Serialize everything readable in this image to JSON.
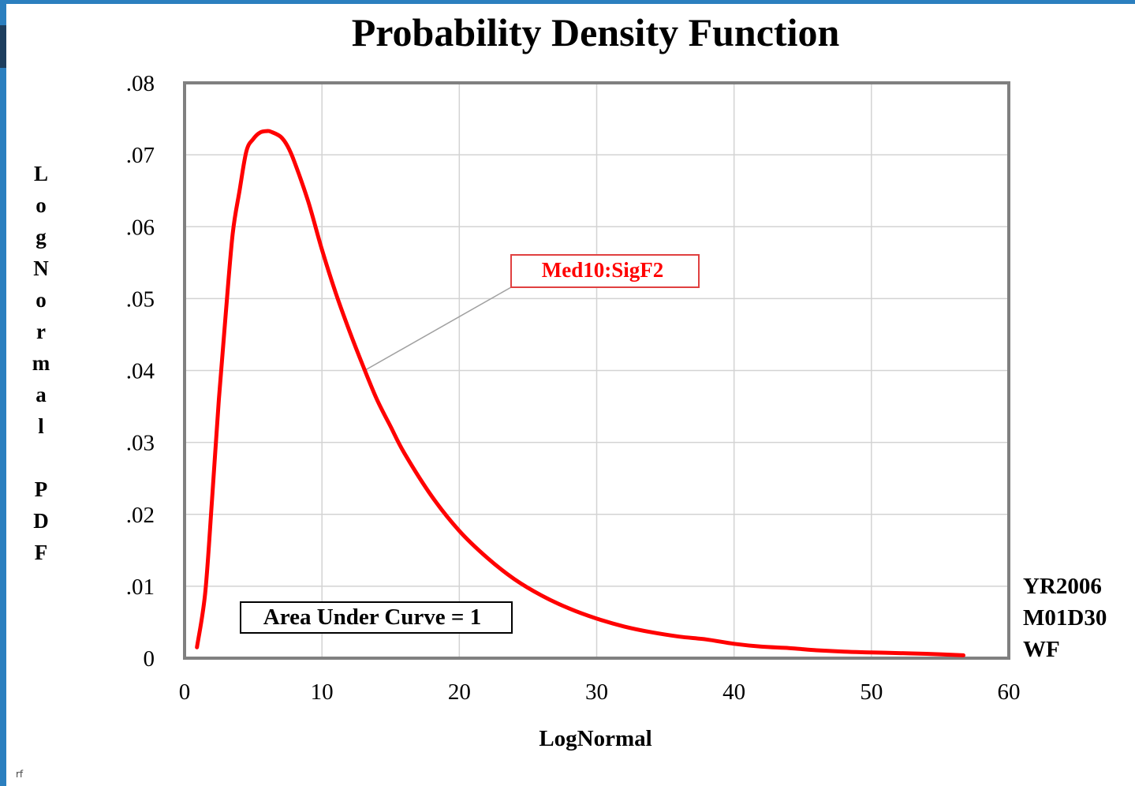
{
  "chart_data": {
    "type": "line",
    "title": "Probability Density Function",
    "xlabel": "LogNormal",
    "ylabel": "LogNormal PDF",
    "xlim": [
      0,
      60
    ],
    "ylim": [
      0,
      0.08
    ],
    "x_ticks": [
      0,
      10,
      20,
      30,
      40,
      50,
      60
    ],
    "x_tick_labels": [
      "0",
      "10",
      "20",
      "30",
      "40",
      "50",
      "60"
    ],
    "y_ticks": [
      0,
      0.01,
      0.02,
      0.03,
      0.04,
      0.05,
      0.06,
      0.07,
      0.08
    ],
    "y_tick_labels": [
      "0",
      ".01",
      ".02",
      ".03",
      ".04",
      ".05",
      ".06",
      ".07",
      ".08"
    ],
    "grid": true,
    "series": [
      {
        "name": "Med10:SigF2",
        "color": "#ff0000",
        "x": [
          0.9,
          1.5,
          2,
          2.5,
          3,
          3.5,
          4,
          4.5,
          5,
          5.5,
          6,
          6.3,
          7,
          7.5,
          8,
          9,
          10,
          11,
          12,
          13,
          14,
          15,
          16,
          18,
          20,
          22,
          24,
          26,
          28,
          30,
          32,
          34,
          36,
          38,
          40,
          42,
          44,
          46,
          48,
          50,
          52,
          54,
          56.7
        ],
        "y": [
          0.0015,
          0.009,
          0.022,
          0.036,
          0.048,
          0.059,
          0.065,
          0.0705,
          0.0722,
          0.0731,
          0.0733,
          0.0732,
          0.0725,
          0.0712,
          0.069,
          0.0635,
          0.0568,
          0.0508,
          0.0455,
          0.0406,
          0.036,
          0.0322,
          0.0285,
          0.0225,
          0.0177,
          0.014,
          0.011,
          0.0087,
          0.0069,
          0.0055,
          0.0044,
          0.0036,
          0.003,
          0.0026,
          0.002,
          0.0016,
          0.0014,
          0.0011,
          0.0009,
          0.0008,
          0.0007,
          0.0006,
          0.0004
        ]
      }
    ],
    "annotations": [
      {
        "text": "Med10:SigF2",
        "color": "#ff0000",
        "points_to_x": 13.1,
        "points_to_y": 0.04
      },
      {
        "text": "Area Under Curve = 1",
        "color": "#000000"
      }
    ]
  },
  "side_note": [
    "YR2006",
    "M01D30",
    "WF"
  ],
  "corner_mark": "rf",
  "colors": {
    "frame": "#2b7fbf",
    "plot_border": "#808080",
    "gridline": "#d3d3d3",
    "curve": "#ff0000",
    "callout_line": "#a0a0a0"
  }
}
